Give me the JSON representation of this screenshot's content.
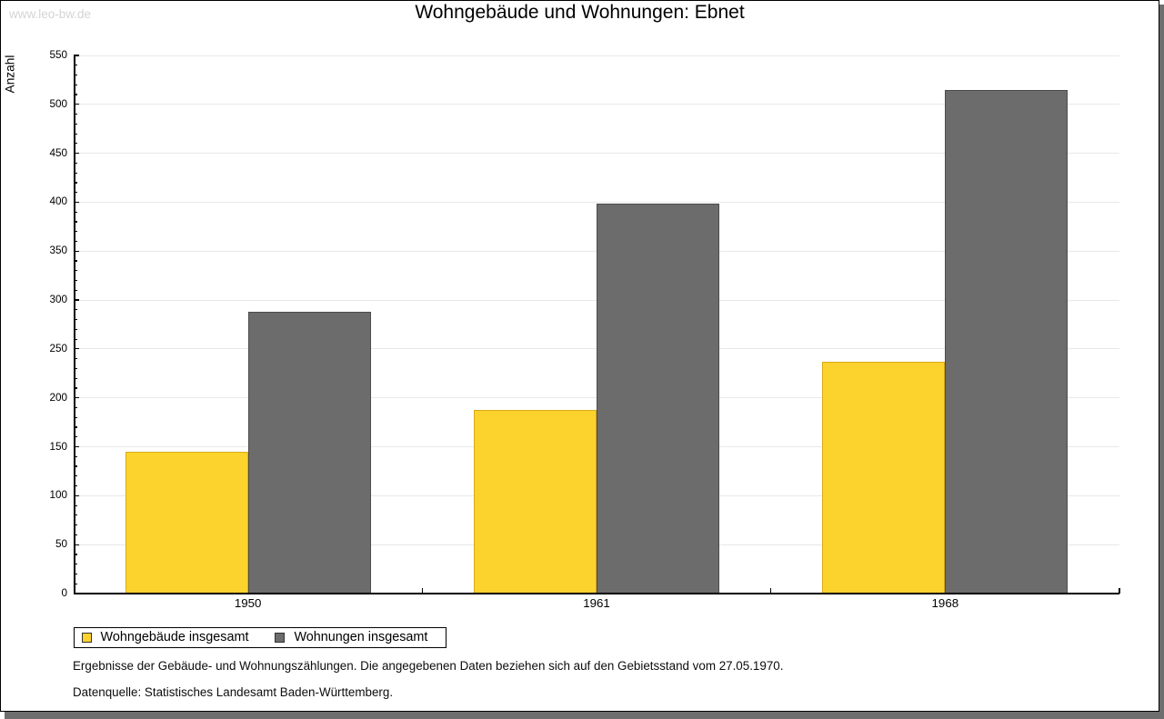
{
  "watermark": "www.leo-bw.de",
  "chart_data": {
    "type": "bar",
    "title": "Wohngebäude und Wohnungen: Ebnet",
    "ylabel": "Anzahl",
    "xlabel": "",
    "categories": [
      "1950",
      "1961",
      "1968"
    ],
    "series": [
      {
        "name": "Wohngebäude insgesamt",
        "color": "#fcd22d",
        "border_color": "#d8ab17",
        "values": [
          145,
          188,
          237
        ]
      },
      {
        "name": "Wohnungen insgesamt",
        "color": "#6c6c6c",
        "border_color": "#4c4c4c",
        "values": [
          288,
          399,
          515
        ]
      }
    ],
    "ylim": [
      0,
      550
    ],
    "ytick_step": 50,
    "yminor_step": 10,
    "grid": true,
    "legend_position": "bottom-left",
    "footnotes": [
      "Ergebnisse der Gebäude- und Wohnungszählungen. Die angegebenen Daten beziehen sich auf den Gebietsstand vom 27.05.1970.",
      "Datenquelle: Statistisches Landesamt Baden-Württemberg."
    ]
  },
  "colors": {
    "grid": "#e8e8e8",
    "axis": "#000000",
    "shadow": "#6e6e6e",
    "watermark": "#d4d4d4",
    "background": "#ffffff"
  }
}
